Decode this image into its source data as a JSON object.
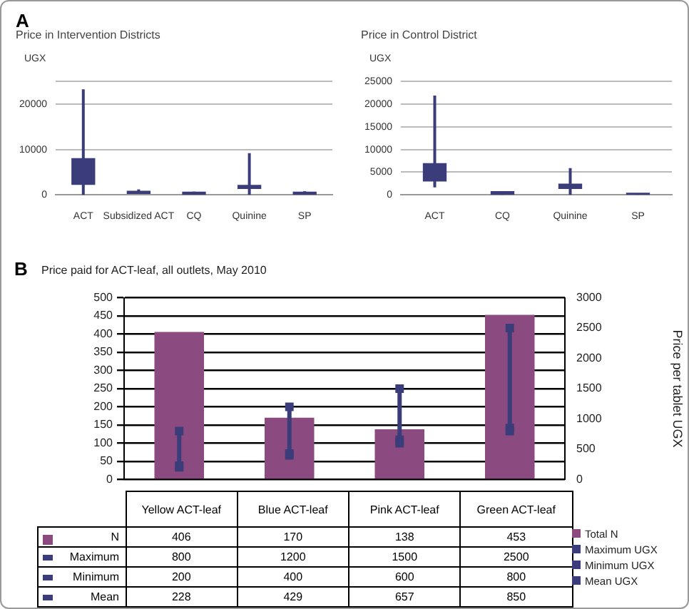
{
  "chart_data": [
    {
      "type": "box",
      "title": "Price in Intervention Districts",
      "ylabel": "UGX",
      "annotations": [
        "A"
      ],
      "color": "#3b3d7a",
      "categories": [
        "ACT",
        "Subsidized ACT",
        "CQ",
        "Quinine",
        "SP"
      ],
      "boxes": [
        {
          "low": 0,
          "q1": 2300,
          "q3": 8000,
          "high": 23300
        },
        {
          "low": 200,
          "q1": 300,
          "q3": 800,
          "high": 1200
        },
        {
          "low": 100,
          "q1": 100,
          "q3": 600,
          "high": 700
        },
        {
          "low": 0,
          "q1": 1400,
          "q3": 2100,
          "high": 9200
        },
        {
          "low": 100,
          "q1": 100,
          "q3": 600,
          "high": 800
        }
      ],
      "ylim": [
        0,
        25000
      ],
      "yticks": [
        0,
        10000,
        20000,
        {
          "value": 25000,
          "label": null
        }
      ],
      "grid": "y"
    },
    {
      "type": "box",
      "title": "Price in Control District",
      "ylabel": "UGX",
      "color": "#3b3d7a",
      "categories": [
        "ACT",
        "CQ",
        "Quinine",
        "SP"
      ],
      "boxes": [
        {
          "low": 1650,
          "q1": 3050,
          "q3": 6900,
          "high": 21900
        },
        {
          "low": 0,
          "q1": 100,
          "q3": 700,
          "high": 700
        },
        {
          "low": 0,
          "q1": 1400,
          "q3": 2350,
          "high": 5900
        },
        {
          "low": 0,
          "q1": 50,
          "q3": 350,
          "high": 350
        }
      ],
      "ylim": [
        0,
        25000
      ],
      "yticks": [
        0,
        5000,
        10000,
        15000,
        20000,
        25000
      ],
      "grid": "y"
    },
    {
      "type": "bar",
      "title": "Price paid for ACT-leaf, all outlets, May 2010",
      "y2label": "Price per tablet UGX",
      "annotations": [
        "B",
        "N",
        "Maximum",
        "Minimum",
        "Mean"
      ],
      "categories": [
        "Yellow ACT-leaf",
        "Blue ACT-leaf",
        "Pink ACT-leaf",
        "Green ACT-leaf"
      ],
      "series": [
        {
          "name": "Total N",
          "type": "bar",
          "color": "#8b4a80",
          "values": [
            406,
            170,
            138,
            453
          ]
        },
        {
          "name": "Maximum UGX",
          "type": "scatter",
          "axis": "y2",
          "marker": "square",
          "color": "#3b3d7a",
          "values": [
            800,
            1200,
            1500,
            2500
          ]
        },
        {
          "name": "Minimum UGX",
          "type": "scatter",
          "axis": "y2",
          "marker": "square",
          "color": "#3b3d7a",
          "values": [
            200,
            400,
            600,
            800
          ]
        },
        {
          "name": "Mean UGX",
          "type": "scatter",
          "axis": "y2",
          "marker": "square",
          "color": "#3b3d7a",
          "values": [
            228,
            429,
            657,
            850
          ]
        }
      ],
      "ylim": [
        0,
        500
      ],
      "yticks": [
        0,
        50,
        100,
        150,
        200,
        250,
        300,
        350,
        400,
        450,
        500
      ],
      "y2lim": [
        0,
        3000
      ],
      "y2ticks": [
        0,
        500,
        1000,
        1500,
        2000,
        2500,
        3000
      ],
      "grid": "y",
      "legend": "bottom right",
      "data_labels": true
    }
  ]
}
